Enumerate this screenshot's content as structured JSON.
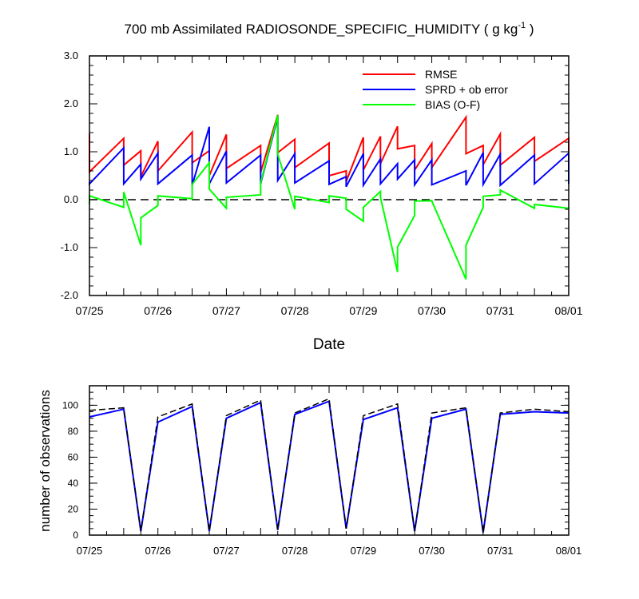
{
  "chart_data": [
    {
      "type": "line",
      "title_main": "700 mb Assimilated RADIOSONDE_SPECIFIC_HUMIDITY ( g kg",
      "title_sup": "-1",
      "title_end": " )",
      "xlabel": "Date",
      "ylabel": "",
      "x_tick_labels": [
        "07/25",
        "07/26",
        "07/27",
        "07/28",
        "07/29",
        "07/30",
        "07/31",
        "08/01"
      ],
      "x_range_days": [
        0,
        7
      ],
      "ylim": [
        -2,
        3
      ],
      "y_ticks": [
        -2,
        -1,
        0,
        1,
        2,
        3
      ],
      "y_tick_labels": [
        "-2.0",
        "-1.0",
        "0.0",
        "1.0",
        "2.0",
        "3.0"
      ],
      "zero_line": "dashed",
      "legend_position": "top-right",
      "series": [
        {
          "name": "RMSE",
          "color": "#ff0000",
          "x": [
            0,
            0,
            0.5,
            0.5,
            0.75,
            0.75,
            1,
            1,
            1.5,
            1.5,
            1.75,
            1.75,
            2,
            2,
            2.5,
            2.5,
            2.75,
            2.75,
            3,
            3,
            3.5,
            3.5,
            3.75,
            3.75,
            4,
            4,
            4.25,
            4.25,
            4.5,
            4.5,
            4.75,
            4.75,
            5,
            5,
            5.5,
            5.5,
            5.75,
            5.75,
            6,
            6,
            6.5,
            6.5,
            7,
            7
          ],
          "y": [
            1.38,
            0.58,
            1.28,
            0.72,
            1.02,
            0.48,
            1.22,
            0.6,
            1.41,
            0.77,
            1.02,
            0.5,
            1.36,
            0.65,
            1.13,
            0.57,
            1.77,
            0.98,
            1.26,
            0.67,
            1.18,
            0.5,
            0.6,
            0.38,
            1.3,
            0.62,
            1.32,
            0.75,
            1.53,
            1.06,
            1.13,
            0.62,
            1.17,
            0.67,
            1.72,
            0.96,
            1.13,
            0.73,
            1.37,
            0.72,
            1.3,
            0.8,
            1.28,
            0.78
          ]
        },
        {
          "name": "SPRD + ob error",
          "color": "#0000ff",
          "x": [
            0,
            0,
            0.5,
            0.5,
            0.75,
            0.75,
            1,
            1,
            1.5,
            1.5,
            1.75,
            1.75,
            2,
            2,
            2.5,
            2.5,
            2.75,
            2.75,
            3,
            3,
            3.5,
            3.5,
            3.75,
            3.75,
            4,
            4,
            4.25,
            4.25,
            4.5,
            4.5,
            4.75,
            4.75,
            5,
            5,
            5.5,
            5.5,
            5.75,
            5.75,
            6,
            6,
            6.5,
            6.5,
            7,
            7
          ],
          "y": [
            0.37,
            0.33,
            1.08,
            0.33,
            0.74,
            0.43,
            0.97,
            0.33,
            0.93,
            0.3,
            1.52,
            0.33,
            1.01,
            0.35,
            0.93,
            0.33,
            1.72,
            0.4,
            0.96,
            0.35,
            0.81,
            0.32,
            0.48,
            0.27,
            0.96,
            0.3,
            0.85,
            0.33,
            0.75,
            0.43,
            0.83,
            0.31,
            0.83,
            0.31,
            0.6,
            0.3,
            0.98,
            0.32,
            0.95,
            0.3,
            0.93,
            0.33,
            0.97,
            0.33
          ]
        },
        {
          "name": "BIAS (O-F)",
          "color": "#00ff00",
          "x": [
            0,
            0,
            0.5,
            0.5,
            0.75,
            0.75,
            1,
            1,
            1.5,
            1.5,
            1.75,
            1.75,
            2,
            2,
            2.5,
            2.5,
            2.75,
            2.75,
            3,
            3,
            3.5,
            3.5,
            3.75,
            3.75,
            4,
            4,
            4.25,
            4.25,
            4.5,
            4.5,
            4.75,
            4.75,
            5,
            5,
            5.5,
            5.5,
            5.75,
            5.75,
            6,
            6,
            6.5,
            6.5,
            7,
            7
          ],
          "y": [
            -0.1,
            0.08,
            -0.16,
            0.16,
            -0.95,
            -0.38,
            -0.12,
            0.08,
            0.02,
            0.32,
            0.77,
            0.22,
            -0.18,
            0.05,
            0.1,
            0.35,
            1.76,
            0.95,
            -0.2,
            0.07,
            -0.06,
            0.08,
            0.03,
            -0.2,
            -0.45,
            -0.16,
            0.17,
            0.05,
            -1.51,
            -0.99,
            -0.33,
            -0.03,
            -0.02,
            -0.03,
            -1.66,
            -0.95,
            -0.16,
            0.07,
            0.1,
            0.2,
            -0.18,
            -0.1,
            -0.18,
            -0.18
          ]
        }
      ]
    },
    {
      "type": "line",
      "title": "",
      "xlabel": "",
      "ylabel": "number of observations",
      "x_tick_labels": [
        "07/25",
        "07/26",
        "07/27",
        "07/28",
        "07/29",
        "07/30",
        "07/31",
        "08/01"
      ],
      "x_range_days": [
        0,
        7
      ],
      "ylim": [
        0,
        115
      ],
      "y_ticks": [
        0,
        20,
        40,
        60,
        80,
        100
      ],
      "y_tick_labels": [
        "0",
        "20",
        "40",
        "60",
        "80",
        "100"
      ],
      "series": [
        {
          "name": "observations (solid)",
          "color": "#0000ff",
          "style": "solid",
          "x": [
            0,
            0.5,
            0.75,
            1,
            1.5,
            1.75,
            2,
            2.5,
            2.75,
            3,
            3.5,
            3.75,
            4,
            4.5,
            4.75,
            5,
            5.5,
            5.75,
            6,
            6.5,
            7
          ],
          "y": [
            91,
            97,
            3,
            87,
            99,
            3,
            90,
            102,
            4,
            93,
            103,
            5,
            89,
            98,
            3,
            90,
            97,
            2,
            93,
            95,
            94
          ]
        },
        {
          "name": "observations (dashed)",
          "color": "#000000",
          "style": "dashed",
          "x": [
            0,
            0.5,
            0.75,
            1,
            1.5,
            1.75,
            2,
            2.5,
            2.75,
            3,
            3.5,
            3.75,
            4,
            4.5,
            4.75,
            5,
            5.5,
            5.75,
            6,
            6.5,
            7
          ],
          "y": [
            96,
            98,
            3,
            91,
            101,
            3,
            92,
            104,
            4,
            94,
            105,
            5,
            92,
            101,
            3,
            94,
            98,
            2,
            94,
            97,
            95
          ]
        }
      ]
    }
  ]
}
